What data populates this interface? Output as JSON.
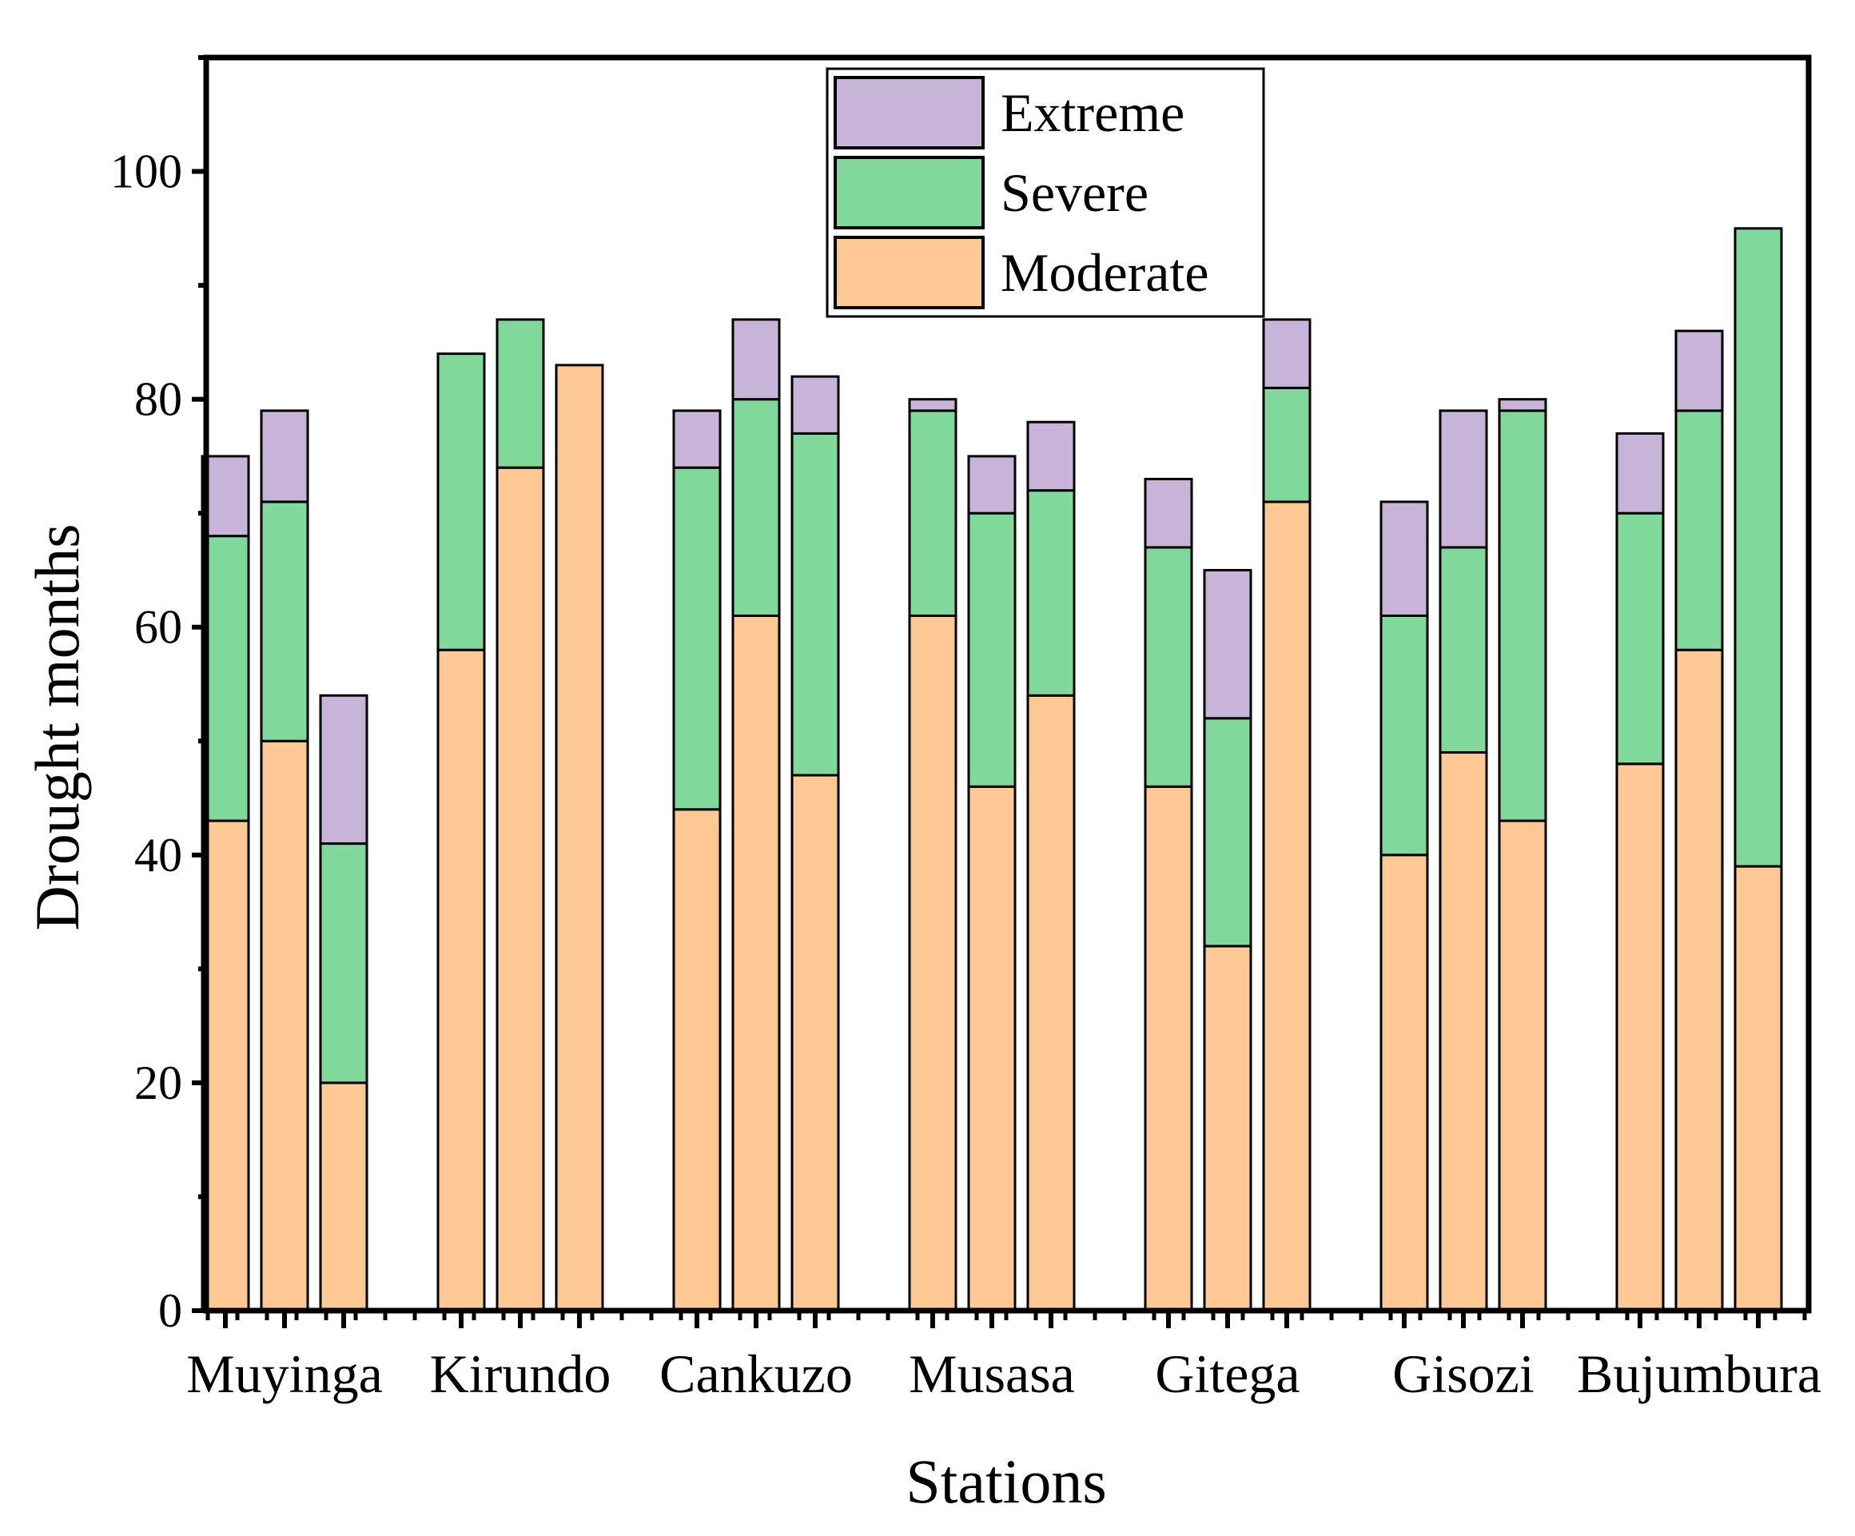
{
  "chart_data": {
    "type": "bar",
    "stacked": true,
    "grouped": true,
    "xlabel": "Stations",
    "ylabel": "Drought months",
    "ylim": [
      0,
      110
    ],
    "yticks": [
      0,
      20,
      40,
      60,
      80,
      100
    ],
    "grid": false,
    "legend": "top-center",
    "categories": [
      "Muyinga",
      "Kirundo",
      "Cankuzo",
      "Musasa",
      "Gitega",
      "Gisozi",
      "Bujumbura"
    ],
    "bars_per_category": 3,
    "series": [
      {
        "name": "Moderate",
        "color": "#FEC895",
        "values": [
          [
            43,
            50,
            20
          ],
          [
            58,
            74,
            83
          ],
          [
            44,
            61,
            47
          ],
          [
            61,
            46,
            54
          ],
          [
            46,
            32,
            71
          ],
          [
            40,
            49,
            43
          ],
          [
            48,
            58,
            39
          ]
        ]
      },
      {
        "name": "Severe",
        "color": "#80D99B",
        "values": [
          [
            25,
            21,
            21
          ],
          [
            26,
            13,
            0
          ],
          [
            30,
            19,
            30
          ],
          [
            18,
            24,
            18
          ],
          [
            21,
            20,
            10
          ],
          [
            21,
            18,
            36
          ],
          [
            22,
            21,
            56
          ]
        ]
      },
      {
        "name": "Extreme",
        "color": "#C8B4D9",
        "values": [
          [
            7,
            8,
            13
          ],
          [
            0,
            0,
            0
          ],
          [
            5,
            7,
            5
          ],
          [
            1,
            5,
            6
          ],
          [
            6,
            13,
            6
          ],
          [
            10,
            12,
            1
          ],
          [
            7,
            7,
            0
          ]
        ]
      }
    ],
    "legend_order": [
      "Extreme",
      "Severe",
      "Moderate"
    ]
  }
}
